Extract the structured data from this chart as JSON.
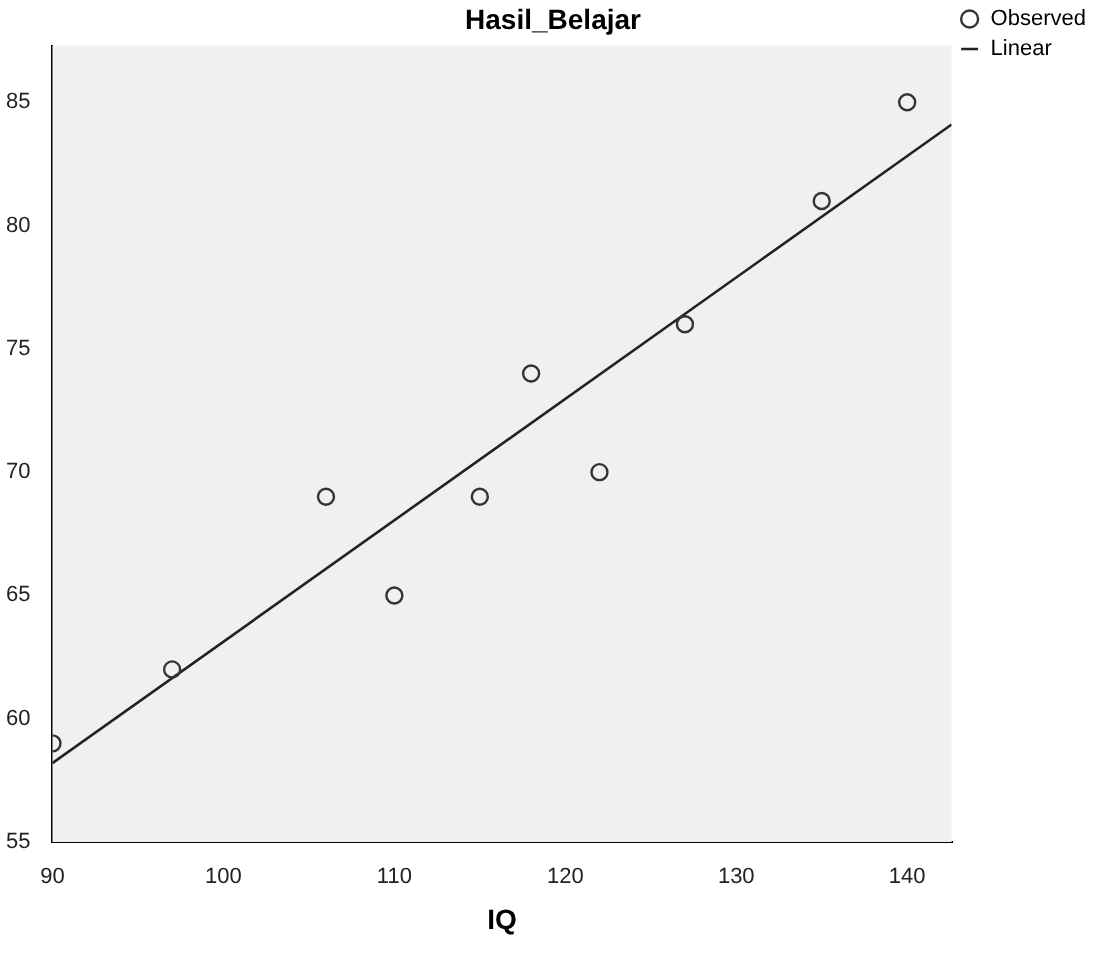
{
  "chart_data": {
    "type": "scatter",
    "title": "Hasil_Belajar",
    "xlabel": "IQ",
    "x": [
      90,
      97,
      106,
      110,
      115,
      118,
      122,
      127,
      135,
      140
    ],
    "series": [
      {
        "name": "Observed",
        "color": "#333333",
        "marker": "circle",
        "values": [
          59,
          62,
          69,
          65,
          69,
          74,
          70,
          76,
          81,
          85
        ]
      },
      {
        "name": "Linear",
        "type": "line",
        "color": "#222222",
        "x": [
          90,
          142.6
        ],
        "values": [
          58.2,
          84.1
        ]
      }
    ],
    "xlim": [
      90,
      142.6
    ],
    "xticks": [
      90,
      100,
      110,
      120,
      130,
      140
    ],
    "ylim": [
      55,
      87.3
    ],
    "yticks": [
      55,
      60,
      65,
      70,
      75,
      80,
      85
    ],
    "grid": false,
    "legend": "top right"
  }
}
